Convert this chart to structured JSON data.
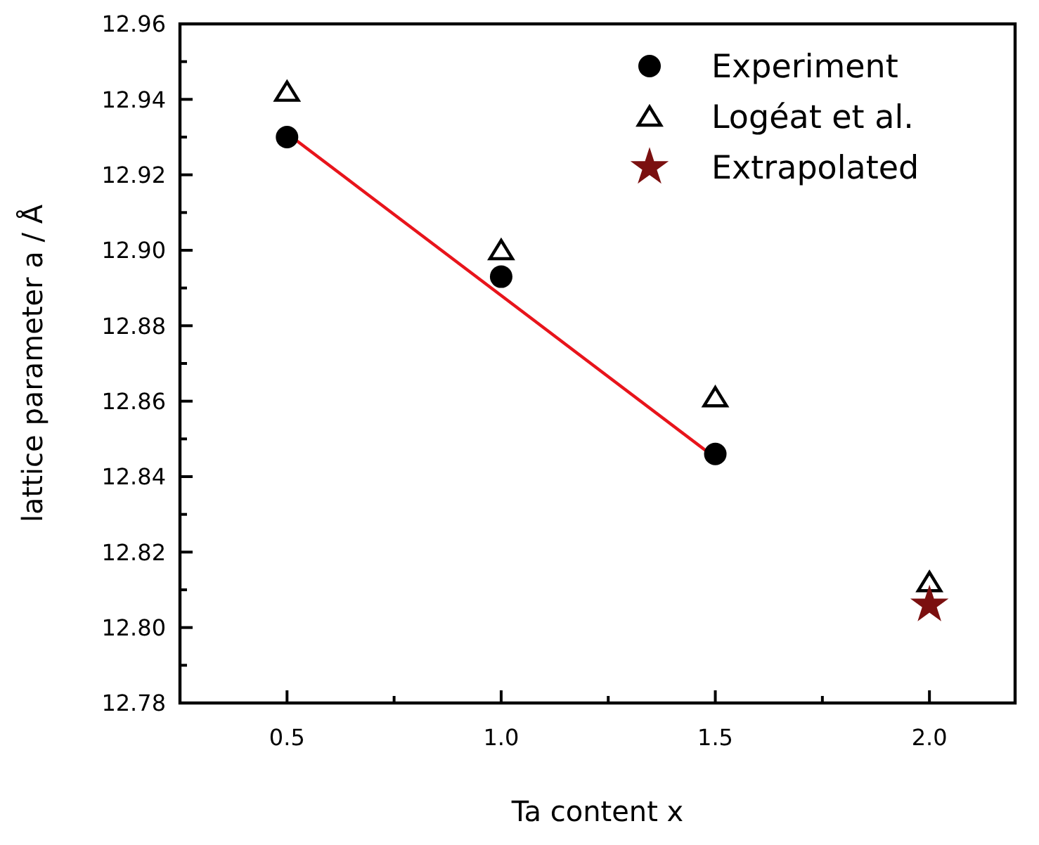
{
  "chart_data": {
    "type": "scatter",
    "xlabel": "Ta content x",
    "ylabel": "lattice parameter a / Å",
    "xlim": [
      0.25,
      2.2
    ],
    "ylim": [
      12.78,
      12.96
    ],
    "xticks": [
      {
        "value": 0.5,
        "label": "0.5"
      },
      {
        "value": 0.75,
        "label": null
      },
      {
        "value": 1,
        "label": "1.0"
      },
      {
        "value": 1.25,
        "label": null
      },
      {
        "value": 1.5,
        "label": "1.5"
      },
      {
        "value": 1.75,
        "label": null
      },
      {
        "value": 2,
        "label": "2.0"
      }
    ],
    "yticks": [
      {
        "value": 12.78,
        "label": "12.78"
      },
      {
        "value": 12.79,
        "label": null
      },
      {
        "value": 12.8,
        "label": "12.80"
      },
      {
        "value": 12.81,
        "label": null
      },
      {
        "value": 12.82,
        "label": "12.82"
      },
      {
        "value": 12.83,
        "label": null
      },
      {
        "value": 12.84,
        "label": "12.84"
      },
      {
        "value": 12.85,
        "label": null
      },
      {
        "value": 12.86,
        "label": "12.86"
      },
      {
        "value": 12.87,
        "label": null
      },
      {
        "value": 12.88,
        "label": "12.88"
      },
      {
        "value": 12.89,
        "label": null
      },
      {
        "value": 12.9,
        "label": "12.90"
      },
      {
        "value": 12.91,
        "label": null
      },
      {
        "value": 12.92,
        "label": "12.92"
      },
      {
        "value": 12.93,
        "label": null
      },
      {
        "value": 12.94,
        "label": "12.94"
      },
      {
        "value": 12.95,
        "label": null
      },
      {
        "value": 12.96,
        "label": "12.96"
      }
    ],
    "legend": "top right",
    "grid": false,
    "series": [
      {
        "name": "Experiment",
        "marker": "circle",
        "color": "#000000",
        "x": [
          0.5,
          1,
          1.5
        ],
        "values": [
          12.93,
          12.893,
          12.846
        ]
      },
      {
        "name": "Logéat et al.",
        "marker": "triangle",
        "color": "#000000",
        "x": [
          0.5,
          1,
          1.5,
          2
        ],
        "values": [
          12.942,
          12.9,
          12.861,
          12.812
        ]
      },
      {
        "name": "Extrapolated",
        "marker": "star",
        "color": "#7b1010",
        "x": [
          2
        ],
        "values": [
          12.806
        ]
      },
      {
        "type": "line",
        "marker": "none",
        "line_style": "solid",
        "color": "#e8141b",
        "x": [
          0.5,
          1.5
        ],
        "values": [
          12.931,
          12.845
        ]
      }
    ]
  }
}
